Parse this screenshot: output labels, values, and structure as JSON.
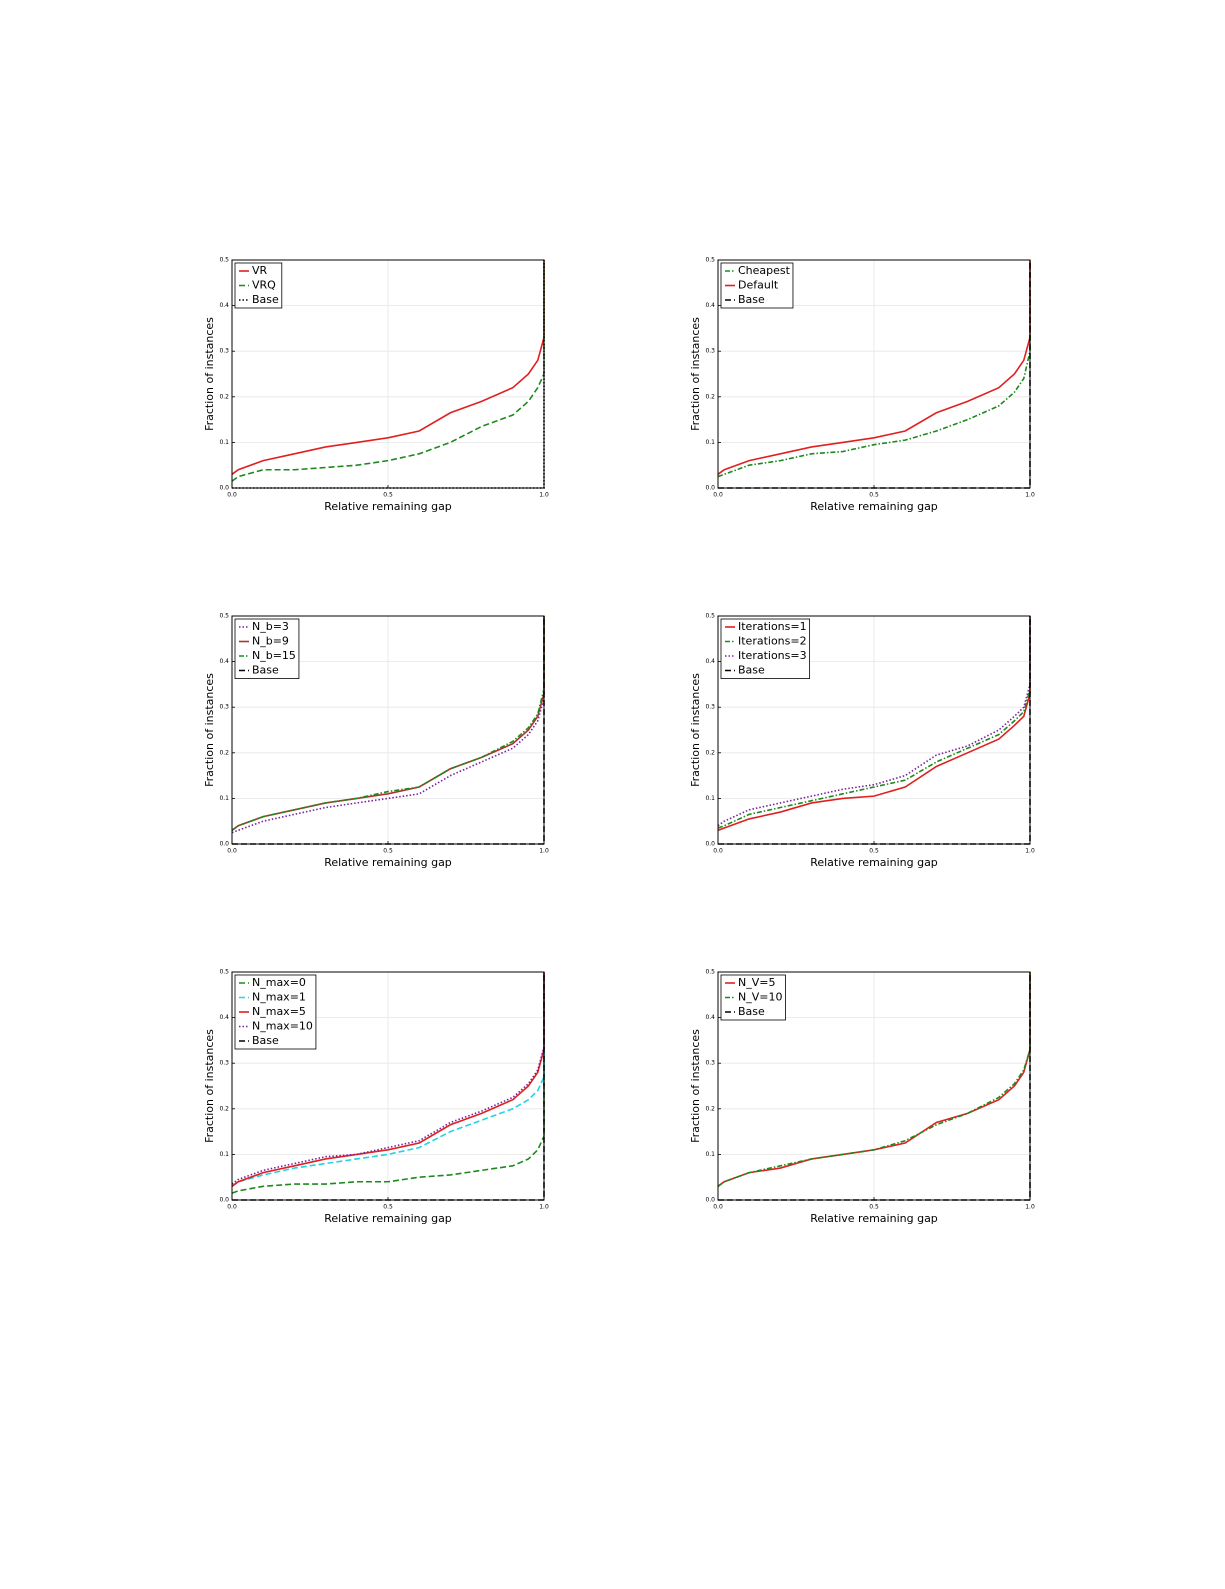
{
  "chart_data": [
    {
      "type": "line",
      "x_label": "Relative remaining gap",
      "y_label": "Fraction of instances",
      "xlim": [
        0,
        1
      ],
      "ylim": [
        0,
        0.5
      ],
      "xticks": [
        {
          "value": 0,
          "label": "0.0"
        },
        0.5,
        {
          "value": 1,
          "label": "1.0"
        }
      ],
      "yticks": [
        {
          "value": 0,
          "label": "0.0"
        },
        0.1,
        0.2,
        0.3,
        0.4,
        0.5
      ],
      "grid": true,
      "legend": "upper-left",
      "x": [
        0,
        0.02,
        0.1,
        0.2,
        0.3,
        0.4,
        0.5,
        0.6,
        0.7,
        0.8,
        0.9,
        0.95,
        0.98,
        1,
        1
      ],
      "series": [
        {
          "name": "VR",
          "color": "#e02020",
          "dash": "solid",
          "values": [
            0.03,
            0.04,
            0.06,
            0.075,
            0.09,
            0.1,
            0.11,
            0.125,
            0.165,
            0.19,
            0.22,
            0.25,
            0.28,
            0.33,
            0.5
          ]
        },
        {
          "name": "VRQ",
          "color": "#1e8a1e",
          "dash": "dashed",
          "values": [
            0.015,
            0.025,
            0.04,
            0.04,
            0.045,
            0.05,
            0.06,
            0.075,
            0.1,
            0.135,
            0.16,
            0.19,
            0.22,
            0.25,
            0.5
          ]
        },
        {
          "name": "Base",
          "color": "#000000",
          "dash": "dotted",
          "values": [
            0,
            0,
            0,
            0,
            0,
            0,
            0,
            0,
            0,
            0,
            0,
            0,
            0,
            0,
            0.5
          ]
        }
      ]
    },
    {
      "type": "line",
      "x_label": "Relative remaining gap",
      "y_label": "Fraction of instances",
      "xlim": [
        0,
        1
      ],
      "ylim": [
        0,
        0.5
      ],
      "xticks": [
        {
          "value": 0,
          "label": "0.0"
        },
        0.5,
        {
          "value": 1,
          "label": "1.0"
        }
      ],
      "yticks": [
        {
          "value": 0,
          "label": "0.0"
        },
        0.1,
        0.2,
        0.3,
        0.4,
        0.5
      ],
      "grid": true,
      "legend": "upper-left",
      "x": [
        0,
        0.02,
        0.1,
        0.2,
        0.3,
        0.4,
        0.5,
        0.6,
        0.7,
        0.8,
        0.9,
        0.95,
        0.98,
        1,
        1
      ],
      "series": [
        {
          "name": "Cheapest",
          "color": "#1e8a1e",
          "dash": "dashdot",
          "values": [
            0.025,
            0.03,
            0.05,
            0.06,
            0.075,
            0.08,
            0.095,
            0.105,
            0.125,
            0.15,
            0.18,
            0.21,
            0.24,
            0.3,
            0.5
          ]
        },
        {
          "name": "Default",
          "color": "#e02020",
          "dash": "solid",
          "values": [
            0.03,
            0.04,
            0.06,
            0.075,
            0.09,
            0.1,
            0.11,
            0.125,
            0.165,
            0.19,
            0.22,
            0.25,
            0.28,
            0.33,
            0.5
          ]
        },
        {
          "name": "Base",
          "color": "#000000",
          "dash": "dashed",
          "values": [
            0,
            0,
            0,
            0,
            0,
            0,
            0,
            0,
            0,
            0,
            0,
            0,
            0,
            0,
            0.5
          ]
        }
      ]
    },
    {
      "type": "line",
      "x_label": "Relative remaining gap",
      "y_label": "Fraction of instances",
      "xlim": [
        0,
        1
      ],
      "ylim": [
        0,
        0.5
      ],
      "xticks": [
        {
          "value": 0,
          "label": "0.0"
        },
        0.5,
        {
          "value": 1,
          "label": "1.0"
        }
      ],
      "yticks": [
        {
          "value": 0,
          "label": "0.0"
        },
        0.1,
        0.2,
        0.3,
        0.4,
        0.5
      ],
      "grid": true,
      "legend": "upper-left",
      "x": [
        0,
        0.02,
        0.1,
        0.2,
        0.3,
        0.4,
        0.5,
        0.6,
        0.7,
        0.8,
        0.9,
        0.95,
        0.98,
        1,
        1
      ],
      "series": [
        {
          "name": "N_b=3",
          "color": "#7a1fa0",
          "dash": "dotted",
          "values": [
            0.025,
            0.03,
            0.05,
            0.065,
            0.08,
            0.09,
            0.1,
            0.11,
            0.15,
            0.18,
            0.21,
            0.24,
            0.27,
            0.32,
            0.5
          ]
        },
        {
          "name": "N_b=9",
          "color": "#b03030",
          "dash": "solid",
          "values": [
            0.03,
            0.04,
            0.06,
            0.075,
            0.09,
            0.1,
            0.11,
            0.125,
            0.165,
            0.19,
            0.22,
            0.25,
            0.28,
            0.33,
            0.5
          ]
        },
        {
          "name": "N_b=15",
          "color": "#1e8a1e",
          "dash": "dashdot",
          "values": [
            0.03,
            0.04,
            0.06,
            0.075,
            0.09,
            0.1,
            0.115,
            0.125,
            0.165,
            0.19,
            0.225,
            0.255,
            0.285,
            0.34,
            0.5
          ]
        },
        {
          "name": "Base",
          "color": "#000000",
          "dash": "dashed",
          "values": [
            0,
            0,
            0,
            0,
            0,
            0,
            0,
            0,
            0,
            0,
            0,
            0,
            0,
            0,
            0.5
          ]
        }
      ]
    },
    {
      "type": "line",
      "x_label": "Relative remaining gap",
      "y_label": "Fraction of instances",
      "xlim": [
        0,
        1
      ],
      "ylim": [
        0,
        0.5
      ],
      "xticks": [
        {
          "value": 0,
          "label": "0.0"
        },
        0.5,
        {
          "value": 1,
          "label": "1.0"
        }
      ],
      "yticks": [
        {
          "value": 0,
          "label": "0.0"
        },
        0.1,
        0.2,
        0.3,
        0.4,
        0.5
      ],
      "grid": true,
      "legend": "upper-left",
      "x": [
        0,
        0.02,
        0.1,
        0.2,
        0.3,
        0.4,
        0.5,
        0.6,
        0.7,
        0.8,
        0.9,
        0.95,
        0.98,
        1,
        1
      ],
      "series": [
        {
          "name": "Iterations=1",
          "color": "#e02020",
          "dash": "solid",
          "values": [
            0.03,
            0.035,
            0.055,
            0.07,
            0.09,
            0.1,
            0.105,
            0.125,
            0.17,
            0.2,
            0.23,
            0.26,
            0.28,
            0.33,
            0.5
          ]
        },
        {
          "name": "Iterations=2",
          "color": "#1e8a1e",
          "dash": "dashdot",
          "values": [
            0.035,
            0.04,
            0.065,
            0.08,
            0.095,
            0.11,
            0.125,
            0.14,
            0.18,
            0.21,
            0.24,
            0.27,
            0.29,
            0.34,
            0.5
          ]
        },
        {
          "name": "Iterations=3",
          "color": "#7a1fa0",
          "dash": "dotted",
          "values": [
            0.04,
            0.05,
            0.075,
            0.09,
            0.105,
            0.12,
            0.13,
            0.15,
            0.195,
            0.215,
            0.25,
            0.28,
            0.3,
            0.35,
            0.5
          ]
        },
        {
          "name": "Base",
          "color": "#000000",
          "dash": "dashed",
          "values": [
            0,
            0,
            0,
            0,
            0,
            0,
            0,
            0,
            0,
            0,
            0,
            0,
            0,
            0,
            0.5
          ]
        }
      ]
    },
    {
      "type": "line",
      "x_label": "Relative remaining gap",
      "y_label": "Fraction of instances",
      "xlim": [
        0,
        1
      ],
      "ylim": [
        0,
        0.5
      ],
      "xticks": [
        {
          "value": 0,
          "label": "0.0"
        },
        0.5,
        {
          "value": 1,
          "label": "1.0"
        }
      ],
      "yticks": [
        {
          "value": 0,
          "label": "0.0"
        },
        0.1,
        0.2,
        0.3,
        0.4,
        0.5
      ],
      "grid": true,
      "legend": "upper-left",
      "x": [
        0,
        0.02,
        0.1,
        0.2,
        0.3,
        0.4,
        0.5,
        0.6,
        0.7,
        0.8,
        0.9,
        0.95,
        0.98,
        1,
        1
      ],
      "series": [
        {
          "name": "N_max=0",
          "color": "#1e8a1e",
          "dash": "dashed",
          "values": [
            0.015,
            0.02,
            0.03,
            0.035,
            0.035,
            0.04,
            0.04,
            0.05,
            0.055,
            0.065,
            0.075,
            0.09,
            0.11,
            0.14,
            0.5
          ]
        },
        {
          "name": "N_max=1",
          "color": "#22d3e6",
          "dash": "dashed",
          "values": [
            0.03,
            0.04,
            0.055,
            0.07,
            0.08,
            0.09,
            0.1,
            0.115,
            0.15,
            0.175,
            0.2,
            0.22,
            0.24,
            0.27,
            0.5
          ]
        },
        {
          "name": "N_max=5",
          "color": "#e02020",
          "dash": "solid",
          "values": [
            0.03,
            0.04,
            0.06,
            0.075,
            0.09,
            0.1,
            0.11,
            0.125,
            0.165,
            0.19,
            0.22,
            0.25,
            0.28,
            0.33,
            0.5
          ]
        },
        {
          "name": "N_max=10",
          "color": "#7a1fa0",
          "dash": "dotted",
          "values": [
            0.035,
            0.045,
            0.065,
            0.08,
            0.095,
            0.1,
            0.115,
            0.13,
            0.17,
            0.195,
            0.225,
            0.255,
            0.285,
            0.335,
            0.5
          ]
        },
        {
          "name": "Base",
          "color": "#000000",
          "dash": "dashed",
          "values": [
            0,
            0,
            0,
            0,
            0,
            0,
            0,
            0,
            0,
            0,
            0,
            0,
            0,
            0,
            0.5
          ]
        }
      ]
    },
    {
      "type": "line",
      "x_label": "Relative remaining gap",
      "y_label": "Fraction of instances",
      "xlim": [
        0,
        1
      ],
      "ylim": [
        0,
        0.5
      ],
      "xticks": [
        {
          "value": 0,
          "label": "0.0"
        },
        0.5,
        {
          "value": 1,
          "label": "1.0"
        }
      ],
      "yticks": [
        {
          "value": 0,
          "label": "0.0"
        },
        0.1,
        0.2,
        0.3,
        0.4,
        0.5
      ],
      "grid": true,
      "legend": "upper-left",
      "x": [
        0,
        0.02,
        0.1,
        0.2,
        0.3,
        0.4,
        0.5,
        0.6,
        0.7,
        0.8,
        0.9,
        0.95,
        0.98,
        1,
        1
      ],
      "series": [
        {
          "name": "N_V=5",
          "color": "#e02020",
          "dash": "solid",
          "values": [
            0.03,
            0.04,
            0.06,
            0.07,
            0.09,
            0.1,
            0.11,
            0.125,
            0.17,
            0.19,
            0.22,
            0.25,
            0.28,
            0.33,
            0.5
          ]
        },
        {
          "name": "N_V=10",
          "color": "#1e8a1e",
          "dash": "dashdot",
          "values": [
            0.03,
            0.04,
            0.06,
            0.075,
            0.09,
            0.1,
            0.11,
            0.13,
            0.165,
            0.19,
            0.225,
            0.255,
            0.285,
            0.33,
            0.5
          ]
        },
        {
          "name": "Base",
          "color": "#000000",
          "dash": "dashed",
          "values": [
            0,
            0,
            0,
            0,
            0,
            0,
            0,
            0,
            0,
            0,
            0,
            0,
            0,
            0,
            0.5
          ]
        }
      ]
    }
  ]
}
